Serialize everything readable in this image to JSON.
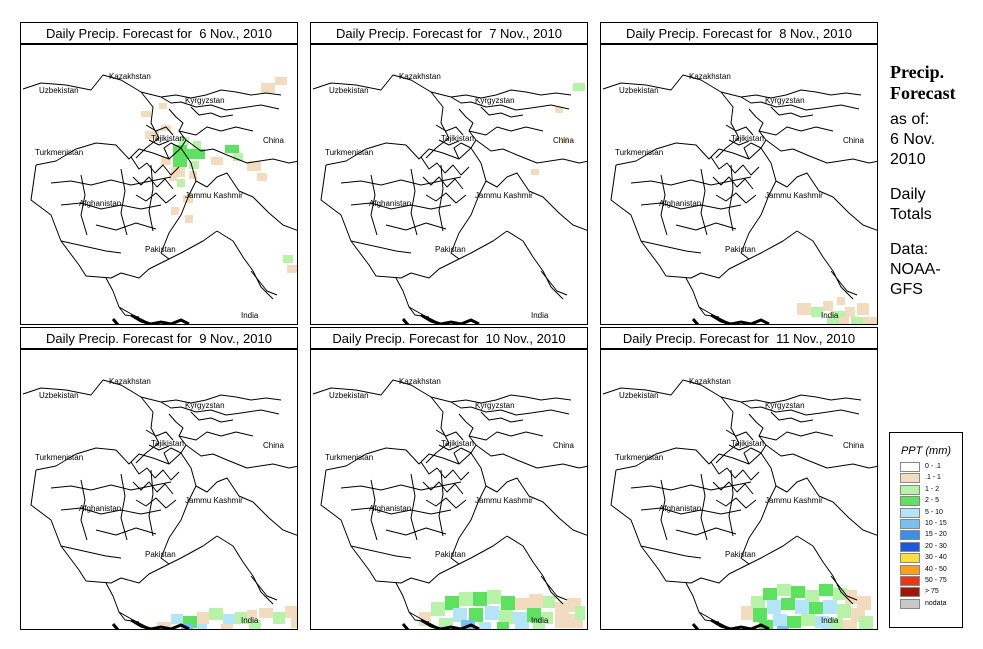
{
  "panels": [
    {
      "title": "Daily Precip. Forecast for  6 Nov., 2010",
      "precip": "day6"
    },
    {
      "title": "Daily Precip. Forecast for  7 Nov., 2010",
      "precip": "day7"
    },
    {
      "title": "Daily Precip. Forecast for  8 Nov., 2010",
      "precip": "day8"
    },
    {
      "title": "Daily Precip. Forecast for  9 Nov., 2010",
      "precip": "day9"
    },
    {
      "title": "Daily Precip. Forecast for  10 Nov., 2010",
      "precip": "day10"
    },
    {
      "title": "Daily Precip. Forecast for  11 Nov., 2010",
      "precip": "day11"
    }
  ],
  "map_labels": {
    "kazakhstan": "Kazakhstan",
    "uzbekistan": "Uzbekistan",
    "kyrgyzstan": "Kyrgyzstan",
    "tajikistan": "Tajikistan",
    "china": "China",
    "turkmenistan": "Turkmenistan",
    "afghanistan": "Afghanistan",
    "jammu_kashmir": "Jammu Kashmir",
    "pakistan": "Pakistan",
    "india": "India"
  },
  "sidebar": {
    "title_line1": "Precip.",
    "title_line2": "Forecast",
    "asof_line1": "as of:",
    "asof_line2": "6 Nov.",
    "asof_line3": "2010",
    "totals_line1": "Daily",
    "totals_line2": "Totals",
    "data_line1": "Data:",
    "data_line2": "NOAA-",
    "data_line3": "GFS"
  },
  "legend": {
    "title": "PPT (mm)",
    "entries": [
      {
        "label": "0 - .1",
        "color": "#ffffff"
      },
      {
        "label": ".1 - 1",
        "color": "#f2dcc0"
      },
      {
        "label": "1 - 2",
        "color": "#b8f2a8"
      },
      {
        "label": "2 - 5",
        "color": "#5ee060"
      },
      {
        "label": "5 - 10",
        "color": "#b4e4f8"
      },
      {
        "label": "10 - 15",
        "color": "#78c0f0"
      },
      {
        "label": "15 - 20",
        "color": "#3c8ee8"
      },
      {
        "label": "20 - 30",
        "color": "#1a5ad8"
      },
      {
        "label": "30 - 40",
        "color": "#f8e040"
      },
      {
        "label": "40 - 50",
        "color": "#f8a020"
      },
      {
        "label": "50 - 75",
        "color": "#e83818"
      },
      {
        "label": "> 75",
        "color": "#a01808"
      },
      {
        "label": "nodata",
        "color": "#c8c8c8"
      }
    ]
  }
}
